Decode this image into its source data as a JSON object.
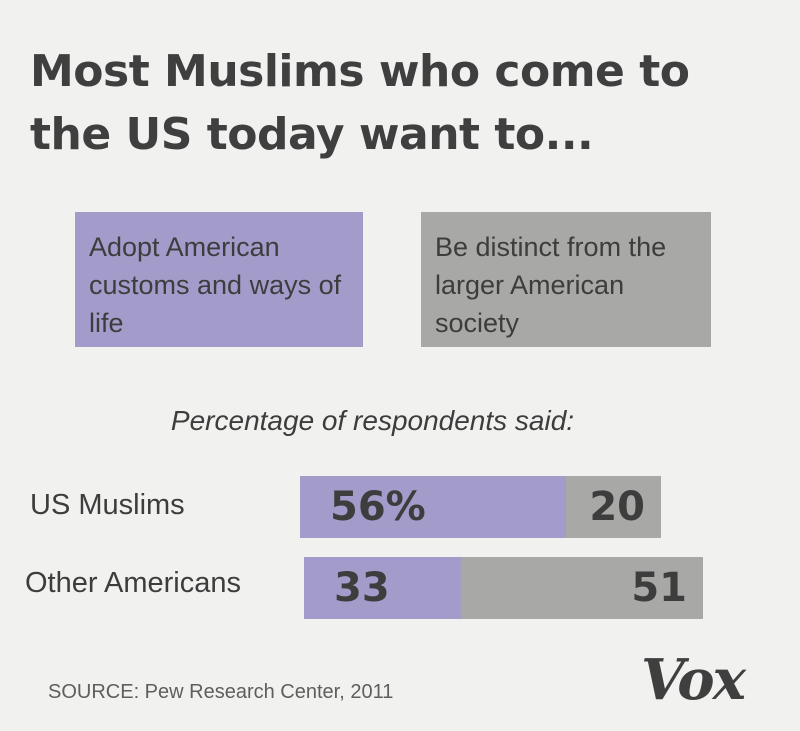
{
  "title": "Most Muslims who come to the US today want to...",
  "colors": {
    "background": "#f1f2f0",
    "adopt": "#a39ccb",
    "distinct": "#a8a8a6",
    "text": "#3d3d3d"
  },
  "legend": {
    "adopt": "Adopt American customs and ways of life",
    "distinct": "Be distinct from the larger American society"
  },
  "chart_data": {
    "type": "bar",
    "orientation": "horizontal",
    "stacked": true,
    "subtitle": "Percentage of respondents said:",
    "categories": [
      "US Muslims",
      "Other Americans"
    ],
    "series": [
      {
        "name": "Adopt American customs and ways of life",
        "values": [
          56,
          33
        ],
        "labels": [
          "56%",
          "33"
        ]
      },
      {
        "name": "Be distinct from the larger American society",
        "values": [
          20,
          51
        ],
        "labels": [
          "20",
          "51"
        ]
      }
    ],
    "xlim": [
      0,
      100
    ],
    "grid": false,
    "legend_position": "top"
  },
  "footer": {
    "source": "SOURCE: Pew Research Center, 2011",
    "logo": "Vox"
  }
}
